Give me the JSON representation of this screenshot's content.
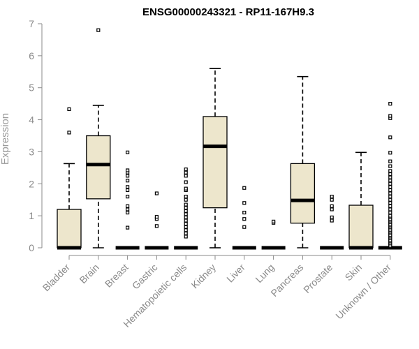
{
  "chart_data": {
    "type": "box",
    "title": "ENSG00000243321 - RP11-167H9.3",
    "xlabel": "",
    "ylabel": "Expression",
    "ylim": [
      0,
      7
    ],
    "yticks": [
      0,
      1,
      2,
      3,
      4,
      5,
      6,
      7
    ],
    "grid": false,
    "colors": {
      "box_fill": "#ede6cc",
      "stroke": "#000000",
      "axis": "#8a8a8a"
    },
    "categories": [
      "Bladder",
      "Brain",
      "Breast",
      "Gastric",
      "Hematopoietic cells",
      "Kidney",
      "Liver",
      "Lung",
      "Pancreas",
      "Prostate",
      "Skin",
      "Unknown / Other"
    ],
    "boxes": [
      {
        "category": "Bladder",
        "lower_whisker": 0,
        "q1": 0,
        "median": 0,
        "q3": 1.2,
        "upper_whisker": 2.63,
        "outliers": [
          3.6,
          4.33
        ]
      },
      {
        "category": "Brain",
        "lower_whisker": 0,
        "q1": 1.53,
        "median": 2.6,
        "q3": 3.5,
        "upper_whisker": 4.45,
        "outliers": [
          6.8
        ]
      },
      {
        "category": "Breast",
        "lower_whisker": 0,
        "q1": 0,
        "median": 0,
        "q3": 0,
        "upper_whisker": 0,
        "outliers": [
          0.63,
          1.1,
          1.2,
          1.3,
          1.6,
          1.8,
          1.9,
          2.1,
          2.25,
          2.35,
          2.42,
          2.98
        ]
      },
      {
        "category": "Gastric",
        "lower_whisker": 0,
        "q1": 0,
        "median": 0,
        "q3": 0,
        "upper_whisker": 0,
        "outliers": [
          0.68,
          0.9,
          0.97,
          1.7
        ]
      },
      {
        "category": "Hematopoietic cells",
        "lower_whisker": 0,
        "q1": 0,
        "median": 0,
        "q3": 0,
        "upper_whisker": 0,
        "outliers": [
          0.35,
          0.45,
          0.55,
          0.65,
          0.75,
          0.85,
          0.95,
          1.05,
          1.15,
          1.25,
          1.35,
          1.5,
          1.6,
          1.8,
          1.85,
          2.05,
          2.25,
          2.35,
          2.45
        ]
      },
      {
        "category": "Kidney",
        "lower_whisker": 0,
        "q1": 1.25,
        "median": 3.17,
        "q3": 4.1,
        "upper_whisker": 5.6,
        "outliers": []
      },
      {
        "category": "Liver",
        "lower_whisker": 0,
        "q1": 0,
        "median": 0,
        "q3": 0,
        "upper_whisker": 0,
        "outliers": [
          0.65,
          0.9,
          1.1,
          1.4,
          1.87
        ]
      },
      {
        "category": "Lung",
        "lower_whisker": 0,
        "q1": 0,
        "median": 0,
        "q3": 0,
        "upper_whisker": 0,
        "outliers": [
          0.78,
          0.82
        ]
      },
      {
        "category": "Pancreas",
        "lower_whisker": 0,
        "q1": 0.77,
        "median": 1.48,
        "q3": 2.63,
        "upper_whisker": 5.35,
        "outliers": []
      },
      {
        "category": "Prostate",
        "lower_whisker": 0,
        "q1": 0,
        "median": 0,
        "q3": 0,
        "upper_whisker": 0,
        "outliers": [
          0.85,
          0.95,
          1.2,
          1.3,
          1.5,
          1.6
        ]
      },
      {
        "category": "Skin",
        "lower_whisker": 0,
        "q1": 0,
        "median": 0,
        "q3": 1.33,
        "upper_whisker": 2.98,
        "outliers": []
      },
      {
        "category": "Unknown / Other",
        "lower_whisker": 0,
        "q1": 0,
        "median": 0,
        "q3": 0,
        "upper_whisker": 0,
        "outliers": [
          0.05,
          0.1,
          0.15,
          0.2,
          0.25,
          0.3,
          0.35,
          0.4,
          0.45,
          0.5,
          0.55,
          0.6,
          0.65,
          0.7,
          0.75,
          0.8,
          0.85,
          0.9,
          0.95,
          1.0,
          1.1,
          1.2,
          1.3,
          1.4,
          1.5,
          1.6,
          1.7,
          1.8,
          1.9,
          2.0,
          2.1,
          2.2,
          2.3,
          2.4,
          2.55,
          2.7,
          2.97,
          3.45,
          4.05,
          4.12,
          4.5
        ]
      }
    ]
  }
}
